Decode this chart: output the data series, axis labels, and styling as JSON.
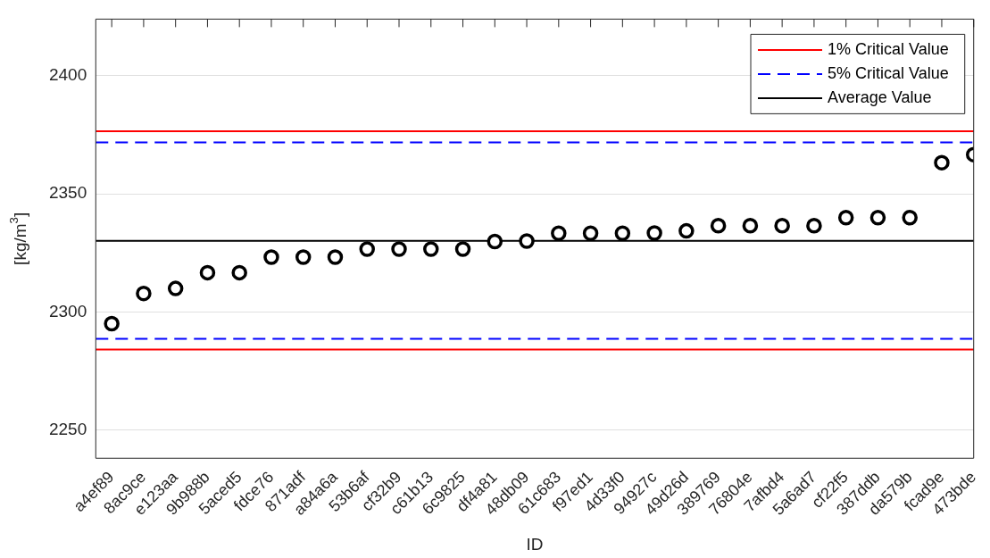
{
  "chart_data": {
    "type": "scatter",
    "xlabel": "ID",
    "ylabel": "[kg/m$^{3}$]",
    "categories": [
      "a4ef89",
      "8ac9ce",
      "e123aa",
      "9b988b",
      "5aced5",
      "fdce76",
      "871adf",
      "a84a6a",
      "53b6af",
      "cf32b9",
      "c61b13",
      "6c9825",
      "df4a81",
      "48db09",
      "61c683",
      "f97ed1",
      "4d33f0",
      "94927c",
      "49d26d",
      "389769",
      "76804e",
      "7afbd4",
      "5a6ad7",
      "cf22f5",
      "387ddb",
      "da579b",
      "fcad9e",
      "473bde"
    ],
    "series": [
      {
        "color": "#000000",
        "values": [
          2295.0,
          2307.8,
          2309.9,
          2316.6,
          2316.6,
          2323.2,
          2323.2,
          2323.2,
          2326.6,
          2326.6,
          2326.6,
          2326.6,
          2329.8,
          2330.0,
          2333.3,
          2333.3,
          2333.3,
          2333.4,
          2334.3,
          2336.5,
          2336.5,
          2336.5,
          2336.5,
          2339.9,
          2339.9,
          2339.9,
          2363.2,
          2366.6
        ]
      }
    ],
    "marker": "circle",
    "ylim": [
      2238,
      2424
    ],
    "yticks": [
      2250,
      2300,
      2350,
      2400
    ],
    "grid": "y",
    "ref_lines": [
      {
        "axis": "y",
        "value": 2376.5,
        "label": "1% Critical Value",
        "color": "#ff0000",
        "line_style": "solid"
      },
      {
        "axis": "y",
        "value": 2371.8,
        "label": "5% Critical Value",
        "color": "#0000ff",
        "line_style": "dashed"
      },
      {
        "axis": "y",
        "value": 2330.1,
        "label": "Average Value",
        "color": "#000000",
        "line_style": "solid"
      },
      {
        "axis": "y",
        "value": 2288.6,
        "label": null,
        "color": "#0000ff",
        "line_style": "dashed"
      },
      {
        "axis": "y",
        "value": 2284.0,
        "label": null,
        "color": "#ff0000",
        "line_style": "solid"
      }
    ],
    "legend": "top right"
  }
}
